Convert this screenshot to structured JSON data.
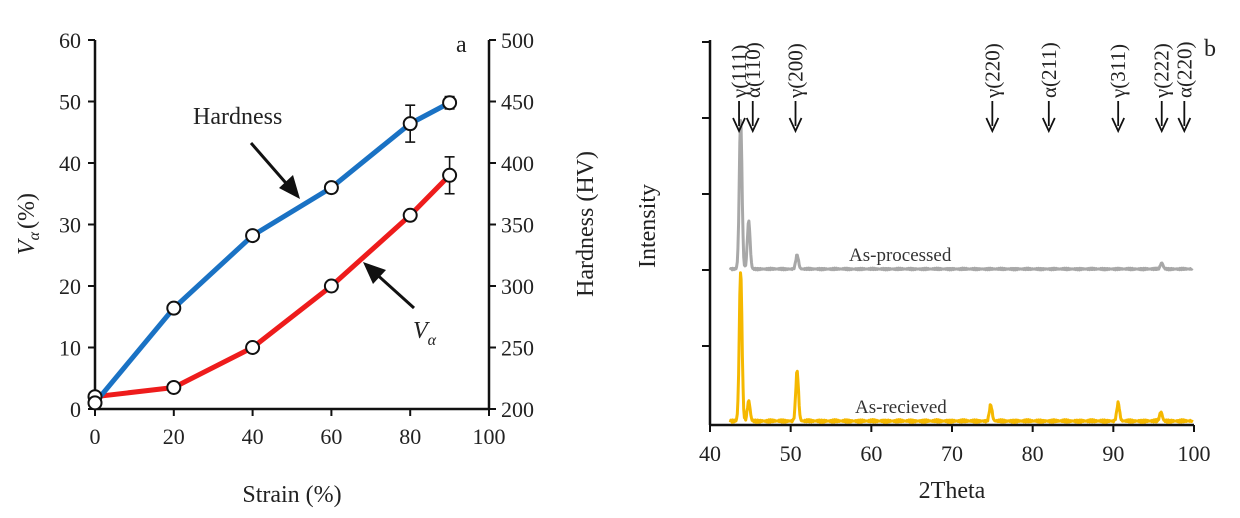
{
  "chart_data": [
    {
      "type": "line",
      "panel": "a",
      "xlabel": "Strain (%)",
      "xlim": [
        0,
        100
      ],
      "xticks": [
        0,
        20,
        40,
        60,
        80,
        100
      ],
      "ylabel": "(%)",
      "ylabel_symbol": "V",
      "ylabel_sub": "α",
      "ylim": [
        0,
        60
      ],
      "yticks": [
        0,
        10,
        20,
        30,
        40,
        50,
        60
      ],
      "y2label": "Hardness (HV)",
      "y2lim": [
        200,
        500
      ],
      "y2ticks": [
        200,
        250,
        300,
        350,
        400,
        450,
        500
      ],
      "series": [
        {
          "name": "Hardness",
          "axis": "right",
          "color": "#1a72c4",
          "x": [
            0,
            20,
            40,
            60,
            80,
            90
          ],
          "y": [
            205,
            282,
            341,
            380,
            432,
            449
          ],
          "err": [
            0,
            0,
            0,
            4,
            15,
            5
          ]
        },
        {
          "name": "Vα",
          "axis": "left",
          "color": "#ee1c1c",
          "x": [
            0,
            20,
            40,
            60,
            80,
            90
          ],
          "y": [
            2,
            3.5,
            10,
            20,
            31.5,
            38
          ],
          "err": [
            0,
            0,
            0,
            0,
            0,
            3
          ]
        }
      ],
      "annotations": {
        "hardness_label": "Hardness",
        "v_symbol": "V",
        "v_sub": "α",
        "panel_label": "a"
      }
    },
    {
      "type": "line",
      "panel": "b",
      "xlabel": "2Theta",
      "ylabel": "Intensity",
      "xlim": [
        40,
        100
      ],
      "xticks": [
        40,
        50,
        60,
        70,
        80,
        90,
        100
      ],
      "series": [
        {
          "name": "As-processed",
          "color": "#a8a8a8",
          "peaks": [
            {
              "x": 43.8,
              "h": 150
            },
            {
              "x": 44.8,
              "h": 48
            },
            {
              "x": 50.8,
              "h": 14
            },
            {
              "x": 96.0,
              "h": 6
            }
          ]
        },
        {
          "name": "As-recieved",
          "color": "#f5b800",
          "peaks": [
            {
              "x": 43.8,
              "h": 150
            },
            {
              "x": 44.8,
              "h": 20
            },
            {
              "x": 50.8,
              "h": 50
            },
            {
              "x": 74.8,
              "h": 16
            },
            {
              "x": 90.6,
              "h": 18
            },
            {
              "x": 95.9,
              "h": 9
            }
          ]
        }
      ],
      "phase_markers": [
        {
          "label": "γ(111)",
          "x": 43.6
        },
        {
          "label": "α(110)",
          "x": 45.3
        },
        {
          "label": "γ(200)",
          "x": 50.6
        },
        {
          "label": "γ(220)",
          "x": 75.0
        },
        {
          "label": "α(211)",
          "x": 82.0
        },
        {
          "label": "γ(311)",
          "x": 90.6
        },
        {
          "label": "γ(222)",
          "x": 96.0
        },
        {
          "label": "α(220)",
          "x": 98.8
        }
      ],
      "annotations": {
        "panel_label": "b",
        "processed_label": "As-processed",
        "received_label": "As-recieved"
      }
    }
  ]
}
